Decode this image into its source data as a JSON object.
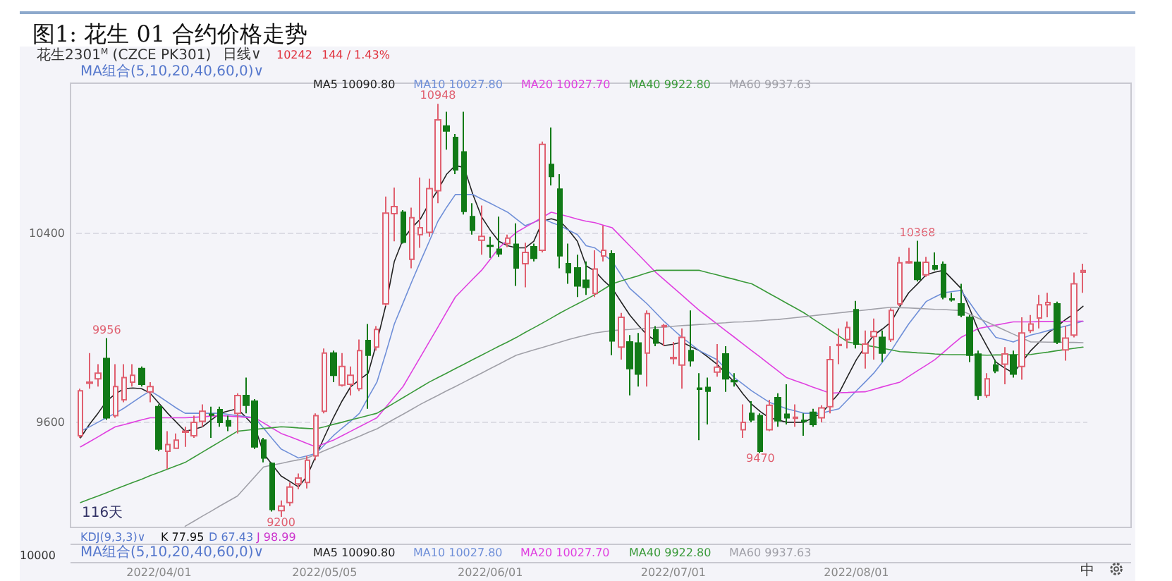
{
  "chart_data": {
    "type": "candlestick",
    "title": "图1: 花生 01 合约价格走势",
    "categories": [
      null,
      null,
      null,
      null,
      null,
      null,
      null,
      null,
      null,
      "2022/04/01",
      null,
      null,
      null,
      null,
      null,
      null,
      null,
      null,
      null,
      null,
      null,
      null,
      null,
      null,
      null,
      null,
      null,
      null,
      "2022/05/05",
      null,
      null,
      null,
      null,
      null,
      null,
      null,
      null,
      null,
      null,
      null,
      null,
      null,
      null,
      null,
      null,
      null,
      null,
      "2022/06/01",
      null,
      null,
      null,
      null,
      null,
      null,
      null,
      null,
      null,
      null,
      null,
      null,
      null,
      null,
      null,
      null,
      null,
      null,
      null,
      null,
      "2022/07/01",
      null,
      null,
      null,
      null,
      null,
      null,
      null,
      null,
      null,
      null,
      null,
      null,
      null,
      null,
      null,
      null,
      null,
      null,
      null,
      null,
      "2022/08/01",
      null,
      null,
      null,
      null,
      null,
      null,
      null,
      null,
      null,
      null,
      null,
      null,
      null,
      null,
      null,
      null,
      null,
      null,
      null,
      null,
      null,
      null,
      null,
      null,
      null,
      null
    ],
    "series": [
      {
        "type": "candlestick",
        "colors": [
          "#e06070",
          "#e06070",
          "#e06070",
          "#117a17",
          "#e06070",
          "#e06070",
          "#e06070",
          "#117a17",
          "#e06070",
          "#117a17",
          "#e06070",
          "#e06070",
          "#e06070",
          "#e06070",
          "#e06070",
          "#117a17",
          "#117a17",
          "#117a17",
          "#e06070",
          "#117a17",
          "#117a17",
          "#117a17",
          "#117a17",
          "#e06070",
          "#e06070",
          "#e06070",
          "#e06070",
          "#e06070",
          "#e06070",
          "#117a17",
          "#e06070",
          "#e06070",
          "#e06070",
          "#117a17",
          "#e06070",
          "#e06070",
          "#e06070",
          "#117a17",
          "#e06070",
          "#e06070",
          "#e06070",
          "#e06070",
          "#117a17",
          "#117a17",
          "#117a17",
          "#117a17",
          "#e06070",
          "#117a17",
          "#117a17",
          "#e06070",
          "#117a17",
          "#e06070",
          "#117a17",
          "#e06070",
          "#117a17",
          "#117a17",
          "#117a17",
          "#117a17",
          "#117a17",
          "#e06070",
          "#e06070",
          "#117a17",
          "#e06070",
          "#117a17",
          "#117a17",
          "#e06070",
          "#117a17",
          "#e06070",
          "#e06070",
          "#e06070",
          "#117a17",
          "#117a17",
          "#117a17",
          "#e06070",
          "#117a17",
          "#117a17",
          "#e06070",
          "#117a17",
          "#117a17",
          "#e06070",
          "#117a17",
          "#117a17",
          "#e06070",
          "#117a17",
          "#117a17",
          "#e06070",
          "#e06070",
          "#e06070",
          "#e06070",
          "#117a17",
          "#e06070",
          "#e06070",
          "#117a17",
          "#e06070",
          "#e06070",
          "#e06070",
          "#117a17",
          "#e06070",
          "#117a17",
          "#117a17",
          "#117a17",
          "#117a17",
          "#117a17",
          "#117a17",
          "#e06070",
          "#117a17",
          "#e06070",
          "#117a17",
          "#e06070",
          "#e06070",
          "#e06070",
          "#e06070",
          "#117a17",
          "#e06070",
          "#e06070",
          "#e06070"
        ],
        "ohlc": [
          [
            9543,
            9742,
            9534,
            9733
          ],
          [
            9765,
            9893,
            9742,
            9770
          ],
          [
            9784,
            9846,
            9751,
            9808
          ],
          [
            9870,
            9956,
            9610,
            9619
          ],
          [
            9628,
            9846,
            9619,
            9751
          ],
          [
            9695,
            9846,
            9685,
            9789
          ],
          [
            9770,
            9846,
            9751,
            9799
          ],
          [
            9827,
            9836,
            9751,
            9761
          ],
          [
            9729,
            9770,
            9685,
            9751
          ],
          [
            9666,
            9676,
            9477,
            9487
          ],
          [
            9477,
            9562,
            9402,
            9506
          ],
          [
            9490,
            9553,
            9487,
            9524
          ],
          [
            9558,
            9581,
            9496,
            9562
          ],
          [
            9543,
            9628,
            9534,
            9600
          ],
          [
            9604,
            9676,
            9581,
            9647
          ],
          [
            9634,
            9666,
            9534,
            9630
          ],
          [
            9653,
            9666,
            9581,
            9600
          ],
          [
            9606,
            9628,
            9562,
            9585
          ],
          [
            9638,
            9723,
            9553,
            9713
          ],
          [
            9713,
            9789,
            9638,
            9672
          ],
          [
            9689,
            9698,
            9487,
            9496
          ],
          [
            9524,
            9534,
            9430,
            9449
          ],
          [
            9426,
            9430,
            9222,
            9231
          ],
          [
            9226,
            9269,
            9200,
            9245
          ],
          [
            9260,
            9345,
            9245,
            9326
          ],
          [
            9339,
            9383,
            9316,
            9364
          ],
          [
            9345,
            9458,
            9320,
            9439
          ],
          [
            9458,
            9638,
            9439,
            9628
          ],
          [
            9647,
            9912,
            9638,
            9893
          ],
          [
            9893,
            9903,
            9770,
            9799
          ],
          [
            9757,
            9893,
            9751,
            9836
          ],
          [
            9761,
            9836,
            9714,
            9799
          ],
          [
            9742,
            9950,
            9732,
            9903
          ],
          [
            9946,
            10016,
            9657,
            9884
          ],
          [
            9918,
            10007,
            9903,
            9993
          ],
          [
            10101,
            10555,
            10092,
            10485
          ],
          [
            10483,
            10593,
            10366,
            10513
          ],
          [
            10489,
            10498,
            10356,
            10362
          ],
          [
            10290,
            10508,
            10252,
            10466
          ],
          [
            10394,
            10636,
            10338,
            10423
          ],
          [
            10404,
            10631,
            10385,
            10589
          ],
          [
            10580,
            10948,
            10527,
            10880
          ],
          [
            10854,
            10914,
            10754,
            10833
          ],
          [
            10805,
            10820,
            10650,
            10669
          ],
          [
            10744,
            10914,
            10479,
            10493
          ],
          [
            10470,
            10527,
            10394,
            10413
          ],
          [
            10370,
            10517,
            10309,
            10387
          ],
          [
            10349,
            10385,
            10296,
            10345
          ],
          [
            10332,
            10470,
            10300,
            10313
          ],
          [
            10356,
            10394,
            10341,
            10379
          ],
          [
            10353,
            10442,
            10177,
            10253
          ],
          [
            10271,
            10360,
            10171,
            10319
          ],
          [
            10343,
            10356,
            10281,
            10294
          ],
          [
            10328,
            10788,
            10319,
            10776
          ],
          [
            10691,
            10848,
            10602,
            10640
          ],
          [
            10587,
            10650,
            10252,
            10305
          ],
          [
            10271,
            10356,
            10186,
            10234
          ],
          [
            10253,
            10309,
            10130,
            10177
          ],
          [
            10201,
            10281,
            10139,
            10171
          ],
          [
            10145,
            10328,
            10130,
            10249
          ],
          [
            10304,
            10432,
            10281,
            10328
          ],
          [
            10313,
            10328,
            9884,
            9944
          ],
          [
            9918,
            10063,
            9865,
            10044
          ],
          [
            9940,
            9969,
            9714,
            9827
          ],
          [
            9935,
            9978,
            9751,
            9804
          ],
          [
            9893,
            10073,
            9751,
            10060
          ],
          [
            9991,
            10007,
            9922,
            9935
          ],
          [
            10005,
            10016,
            9922,
            10009
          ],
          [
            9870,
            9940,
            9846,
            9874
          ],
          [
            9842,
            9997,
            9742,
            9959
          ],
          [
            9903,
            10073,
            9836,
            9861
          ],
          [
            9744,
            9808,
            9524,
            9740
          ],
          [
            9747,
            9789,
            9591,
            9732
          ],
          [
            9812,
            9931,
            9793,
            9833
          ],
          [
            9889,
            9922,
            9729,
            9784
          ],
          [
            9776,
            9808,
            9751,
            9772
          ],
          [
            9568,
            9676,
            9534,
            9600
          ],
          [
            9638,
            9689,
            9600,
            9610
          ],
          [
            9628,
            9638,
            9470,
            9477
          ],
          [
            9568,
            9695,
            9562,
            9672
          ],
          [
            9704,
            9723,
            9581,
            9606
          ],
          [
            9634,
            9761,
            9591,
            9619
          ],
          [
            9617,
            9676,
            9581,
            9621
          ],
          [
            9608,
            9638,
            9543,
            9604
          ],
          [
            9642,
            9657,
            9581,
            9591
          ],
          [
            9619,
            9672,
            9600,
            9661
          ],
          [
            9666,
            9922,
            9638,
            9865
          ],
          [
            9925,
            9997,
            9846,
            9929
          ],
          [
            9950,
            10026,
            9912,
            10001
          ],
          [
            10076,
            10114,
            9912,
            9931
          ],
          [
            9893,
            9988,
            9827,
            9931
          ],
          [
            9963,
            10039,
            9865,
            9984
          ],
          [
            9959,
            9988,
            9855,
            9893
          ],
          [
            9950,
            10082,
            9940,
            10073
          ],
          [
            10101,
            10300,
            10092,
            10275
          ],
          [
            10275,
            10338,
            10271,
            10279
          ],
          [
            10277,
            10368,
            10196,
            10205
          ],
          [
            10224,
            10300,
            10215,
            10277
          ],
          [
            10262,
            10319,
            10243,
            10249
          ],
          [
            10268,
            10281,
            10120,
            10130
          ],
          [
            10122,
            10148,
            10111,
            10118
          ],
          [
            10101,
            10186,
            10044,
            10054
          ],
          [
            10044,
            10054,
            9855,
            9884
          ],
          [
            9888,
            9903,
            9695,
            9714
          ],
          [
            9714,
            9808,
            9704,
            9784
          ],
          [
            9842,
            9865,
            9808,
            9818
          ],
          [
            9846,
            9918,
            9761,
            9889
          ],
          [
            9884,
            9903,
            9789,
            9804
          ],
          [
            9836,
            10044,
            9780,
            9978
          ],
          [
            9988,
            10054,
            9978,
            10016
          ],
          [
            10041,
            10139,
            9997,
            10097
          ],
          [
            10097,
            10148,
            10044,
            10107
          ],
          [
            10101,
            10111,
            9931,
            9940
          ],
          [
            9906,
            10007,
            9861,
            9956
          ],
          [
            9969,
            10234,
            9959,
            10186
          ],
          [
            10235,
            10271,
            10148,
            10242
          ]
        ]
      },
      {
        "type": "line",
        "name": "MA5 10090.80",
        "color": "#222222",
        "values": [
          9534,
          9590,
          9638,
          9690,
          9720,
          9742,
          9745,
          9742,
          9723,
          9680,
          9638,
          9600,
          9562,
          9570,
          9581,
          9610,
          9638,
          9648,
          9657,
          9620,
          9581,
          9468,
          9420,
          9373,
          9350,
          9326,
          9373,
          9458,
          9540,
          9619,
          9690,
          9751,
          9780,
          9808,
          9940,
          10092,
          10281,
          10375,
          10423,
          10461,
          10527,
          10583,
          10650,
          10687,
          10678,
          10565,
          10470,
          10413,
          10366,
          10347,
          10338,
          10338,
          10366,
          10451,
          10461,
          10451,
          10413,
          10366,
          10262,
          10240,
          10200,
          10167,
          10110,
          10054,
          10010,
          9969,
          9945,
          9925,
          9930,
          9940,
          9920,
          9903,
          9875,
          9846,
          9808,
          9770,
          9720,
          9676,
          9645,
          9619,
          9610,
          9600,
          9600,
          9600,
          9620,
          9638,
          9680,
          9723,
          9795,
          9865,
          9920,
          9969,
          9995,
          10025,
          10090,
          10148,
          10185,
          10224,
          10235,
          10243,
          10205,
          10167,
          10080,
          9988,
          9920,
          9855,
          9830,
          9808,
          9855,
          9903,
          9940,
          9978,
          10005,
          10035,
          10060,
          10091
        ]
      },
      {
        "type": "line",
        "name": "MA10 10027.80",
        "color": "#6f8fd8",
        "values": [
          9562,
          9580,
          9600,
          9620,
          9638,
          9660,
          9685,
          9710,
          9733,
          9710,
          9685,
          9660,
          9638,
          9638,
          9638,
          9638,
          9638,
          9633,
          9628,
          9624,
          9619,
          9575,
          9530,
          9487,
          9468,
          9449,
          9458,
          9468,
          9505,
          9543,
          9575,
          9605,
          9638,
          9705,
          9770,
          9890,
          10016,
          10105,
          10195,
          10281,
          10365,
          10451,
          10510,
          10564,
          10564,
          10564,
          10545,
          10527,
          10508,
          10489,
          10460,
          10432,
          10446,
          10461,
          10446,
          10432,
          10413,
          10394,
          10347,
          10338,
          10310,
          10281,
          10224,
          10167,
          10134,
          10101,
          10063,
          10025,
          9992,
          9959,
          9931,
          9903,
          9884,
          9865,
          9827,
          9789,
          9761,
          9733,
          9709,
          9685,
          9671,
          9657,
          9648,
          9638,
          9638,
          9638,
          9648,
          9657,
          9695,
          9733,
          9770,
          9808,
          9855,
          9903,
          9960,
          10016,
          10064,
          10111,
          10130,
          10148,
          10153,
          10158,
          10106,
          10054,
          10007,
          9959,
          9950,
          9940,
          9955,
          9969,
          9978,
          9988,
          9998,
          10007,
          10017,
          10028
        ]
      },
      {
        "type": "line",
        "name": "MA20 10027.70",
        "color": "#e040e0",
        "values": [
          9496,
          9517,
          9538,
          9560,
          9581,
          9590,
          9600,
          9610,
          9619,
          9619,
          9619,
          9619,
          9619,
          9621,
          9623,
          9626,
          9628,
          9626,
          9624,
          9621,
          9619,
          9597,
          9575,
          9553,
          9539,
          9525,
          9510,
          9496,
          9510,
          9524,
          9543,
          9562,
          9581,
          9600,
          9619,
          9663,
          9707,
          9751,
          9814,
          9877,
          9940,
          10003,
          10067,
          10130,
          10168,
          10206,
          10243,
          10290,
          10338,
          10371,
          10404,
          10425,
          10446,
          10468,
          10489,
          10480,
          10470,
          10460,
          10451,
          10445,
          10434,
          10423,
          10385,
          10347,
          10310,
          10272,
          10234,
          10202,
          10170,
          10138,
          10105,
          10073,
          10045,
          10016,
          9988,
          9960,
          9931,
          9903,
          9875,
          9846,
          9818,
          9789,
          9776,
          9763,
          9749,
          9736,
          9723,
          9725,
          9726,
          9728,
          9729,
          9739,
          9750,
          9760,
          9770,
          9794,
          9818,
          9841,
          9865,
          9896,
          9928,
          9959,
          9978,
          9997,
          10004,
          10011,
          10018,
          10025,
          10025,
          10025,
          10026,
          10026,
          10027,
          10027,
          10028,
          10028
        ]
      },
      {
        "type": "line",
        "name": "MA40 9922.80",
        "color": "#3a9a3a",
        "values": [
          9260,
          9274,
          9288,
          9302,
          9317,
          9331,
          9345,
          9359,
          9374,
          9388,
          9402,
          9416,
          9430,
          9452,
          9474,
          9496,
          9518,
          9540,
          9562,
          9566,
          9570,
          9574,
          9577,
          9581,
          9579,
          9576,
          9574,
          9572,
          9581,
          9591,
          9600,
          9610,
          9619,
          9629,
          9638,
          9660,
          9682,
          9704,
          9726,
          9748,
          9770,
          9789,
          9808,
          9827,
          9846,
          9865,
          9884,
          9903,
          9922,
          9940,
          9959,
          9980,
          10000,
          10020,
          10041,
          10062,
          10082,
          10101,
          10120,
          10140,
          10163,
          10186,
          10198,
          10209,
          10220,
          10232,
          10243,
          10243,
          10243,
          10243,
          10243,
          10243,
          10233,
          10224,
          10214,
          10205,
          10195,
          10186,
          10166,
          10145,
          10125,
          10104,
          10084,
          10063,
          10038,
          10014,
          9989,
          9965,
          9940,
          9933,
          9926,
          9920,
          9913,
          9906,
          9899,
          9897,
          9894,
          9892,
          9889,
          9887,
          9886,
          9886,
          9885,
          9885,
          9884,
          9885,
          9885,
          9886,
          9886,
          9887,
          9892,
          9897,
          9903,
          9908,
          9913,
          9918
        ]
      },
      {
        "type": "line",
        "name": "MA60 9937.63",
        "color": "#a0a0a8",
        "values": [
          null,
          null,
          null,
          null,
          null,
          null,
          null,
          null,
          null,
          null,
          null,
          null,
          9160,
          9181,
          9203,
          9224,
          9246,
          9267,
          9288,
          9329,
          9370,
          9411,
          9419,
          9426,
          9434,
          9441,
          9449,
          9464,
          9480,
          9495,
          9511,
          9526,
          9541,
          9557,
          9572,
          9593,
          9614,
          9634,
          9655,
          9676,
          9695,
          9714,
          9733,
          9751,
          9770,
          9789,
          9808,
          9827,
          9846,
          9865,
          9884,
          9895,
          9906,
          9917,
          9928,
          9939,
          9950,
          9960,
          9969,
          9978,
          9983,
          9988,
          9991,
          9993,
          9996,
          9998,
          10001,
          10003,
          10006,
          10009,
          10011,
          10014,
          10016,
          10019,
          10021,
          10024,
          10025,
          10028,
          10030,
          10033,
          10035,
          10039,
          10043,
          10047,
          10051,
          10055,
          10059,
          10063,
          10067,
          10071,
          10075,
          10079,
          10083,
          10087,
          10085,
          10084,
          10082,
          10080,
          10078,
          10077,
          10075,
          10073,
          10057,
          10040,
          10024,
          10007,
          9990,
          9973,
          9957,
          9940,
          9940,
          9939,
          9939,
          9938,
          9938,
          9937
        ]
      }
    ],
    "ylim": [
      9155,
      11035
    ],
    "yticks": [
      9600,
      10400
    ],
    "grid": "y",
    "legend": "top left",
    "marker": "none",
    "line_style": "solid",
    "annotations": [
      "花生2301$^{M}$ (CZCE PK301)",
      "日线∨",
      "10242",
      "144 / 1.43%",
      "MA组合(5,10,20,40,60,0)∨",
      "116天",
      "KDJ(9,3,3)∨",
      "K 77.95",
      "D 67.43",
      "J 98.99",
      "MA组合(5,10,20,40,60,0)∨",
      "MA5 10090.80",
      "MA10 10027.80",
      "MA20 10027.70",
      "MA40 9922.80",
      "MA60 9937.63",
      "10000",
      "中",
      {
        "text": "9956",
        "y": 9956
      },
      {
        "text": "10948",
        "y": 10948
      },
      {
        "text": "9200",
        "y": 9200
      },
      {
        "text": "9470",
        "y": 9470
      },
      {
        "text": "10368",
        "y": 10368
      }
    ]
  }
}
